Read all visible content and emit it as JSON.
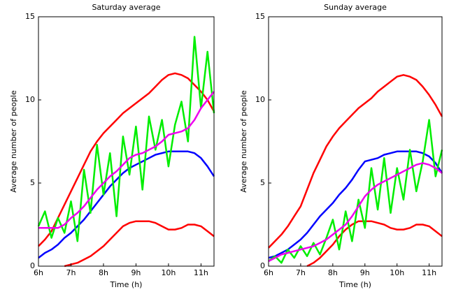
{
  "chart_data": [
    {
      "type": "line",
      "title": "Saturday average",
      "xlabel": "Time (h)",
      "ylabel": "Average number of people",
      "x": [
        6.0,
        6.2,
        6.4,
        6.6,
        6.8,
        7.0,
        7.2,
        7.4,
        7.6,
        7.8,
        8.0,
        8.2,
        8.4,
        8.6,
        8.8,
        9.0,
        9.2,
        9.4,
        9.6,
        9.8,
        10.0,
        10.2,
        10.4,
        10.6,
        10.8,
        11.0,
        11.2,
        11.4
      ],
      "xlim": [
        6,
        11.4
      ],
      "ylim": [
        0,
        15
      ],
      "xticks": [
        {
          "value": 6,
          "label": "6h"
        },
        {
          "value": 7,
          "label": "7h"
        },
        {
          "value": 8,
          "label": "8h"
        },
        {
          "value": 9,
          "label": "9h"
        },
        {
          "value": 10,
          "label": "10h"
        },
        {
          "value": 11,
          "label": "11h"
        }
      ],
      "yticks": [
        0,
        5,
        10,
        15
      ],
      "series": [
        {
          "color": "#ff0000",
          "values": [
            1.2,
            1.6,
            2.1,
            2.9,
            3.7,
            4.5,
            5.3,
            6.1,
            6.9,
            7.5,
            8.0,
            8.4,
            8.8,
            9.2,
            9.5,
            9.8,
            10.1,
            10.4,
            10.8,
            11.2,
            11.5,
            11.6,
            11.5,
            11.3,
            10.9,
            10.5,
            10.0,
            9.3
          ]
        },
        {
          "color": "#ff0000",
          "values": [
            null,
            null,
            null,
            null,
            0.0,
            0.1,
            0.2,
            0.4,
            0.6,
            0.9,
            1.2,
            1.6,
            2.0,
            2.4,
            2.6,
            2.7,
            2.7,
            2.7,
            2.6,
            2.4,
            2.2,
            2.2,
            2.3,
            2.5,
            2.5,
            2.4,
            2.1,
            1.8
          ]
        },
        {
          "color": "#0000ff",
          "values": [
            0.5,
            0.8,
            1.0,
            1.3,
            1.7,
            2.0,
            2.4,
            2.8,
            3.3,
            3.8,
            4.3,
            4.8,
            5.2,
            5.6,
            5.9,
            6.1,
            6.3,
            6.5,
            6.7,
            6.8,
            6.9,
            6.9,
            6.9,
            6.9,
            6.8,
            6.5,
            6.0,
            5.4
          ]
        },
        {
          "color": "#00ee00",
          "values": [
            2.4,
            3.3,
            1.7,
            2.9,
            2.0,
            3.9,
            1.5,
            5.8,
            3.2,
            7.3,
            4.3,
            6.8,
            3.0,
            7.8,
            5.5,
            8.4,
            4.6,
            9.0,
            7.0,
            8.8,
            6.0,
            8.5,
            9.9,
            7.5,
            13.8,
            9.5,
            12.9,
            9.2
          ]
        },
        {
          "color": "#ee00ee",
          "values": [
            2.3,
            2.3,
            2.3,
            2.3,
            2.5,
            2.9,
            3.2,
            3.6,
            4.1,
            4.6,
            5.0,
            5.4,
            5.7,
            6.1,
            6.5,
            6.7,
            6.8,
            7.0,
            7.2,
            7.5,
            7.9,
            8.0,
            8.1,
            8.3,
            8.8,
            9.5,
            10.0,
            10.5
          ]
        }
      ]
    },
    {
      "type": "line",
      "title": "Sunday average",
      "xlabel": "Time (h)",
      "ylabel": "Average number of people",
      "x": [
        6.0,
        6.2,
        6.4,
        6.6,
        6.8,
        7.0,
        7.2,
        7.4,
        7.6,
        7.8,
        8.0,
        8.2,
        8.4,
        8.6,
        8.8,
        9.0,
        9.2,
        9.4,
        9.6,
        9.8,
        10.0,
        10.2,
        10.4,
        10.6,
        10.8,
        11.0,
        11.2,
        11.4
      ],
      "xlim": [
        6,
        11.4
      ],
      "ylim": [
        0,
        15
      ],
      "xticks": [
        {
          "value": 6,
          "label": "6h"
        },
        {
          "value": 7,
          "label": "7h"
        },
        {
          "value": 8,
          "label": "8h"
        },
        {
          "value": 9,
          "label": "9h"
        },
        {
          "value": 10,
          "label": "10h"
        },
        {
          "value": 11,
          "label": "11h"
        }
      ],
      "yticks": [
        0,
        5,
        10,
        15
      ],
      "series": [
        {
          "color": "#ff0000",
          "values": [
            1.1,
            1.5,
            1.9,
            2.4,
            3.0,
            3.6,
            4.6,
            5.6,
            6.4,
            7.2,
            7.8,
            8.3,
            8.7,
            9.1,
            9.5,
            9.8,
            10.1,
            10.5,
            10.8,
            11.1,
            11.4,
            11.5,
            11.4,
            11.2,
            10.8,
            10.3,
            9.7,
            9.0
          ]
        },
        {
          "color": "#ff0000",
          "values": [
            null,
            null,
            null,
            null,
            null,
            null,
            0.0,
            0.2,
            0.5,
            0.9,
            1.3,
            1.8,
            2.2,
            2.5,
            2.7,
            2.7,
            2.7,
            2.6,
            2.5,
            2.3,
            2.2,
            2.2,
            2.3,
            2.5,
            2.5,
            2.4,
            2.1,
            1.8
          ]
        },
        {
          "color": "#0000ff",
          "values": [
            0.5,
            0.6,
            0.8,
            1.0,
            1.3,
            1.6,
            2.0,
            2.5,
            3.0,
            3.4,
            3.8,
            4.3,
            4.7,
            5.2,
            5.8,
            6.3,
            6.4,
            6.5,
            6.7,
            6.8,
            6.9,
            6.9,
            6.9,
            6.9,
            6.8,
            6.6,
            6.2,
            5.6
          ]
        },
        {
          "color": "#00ee00",
          "values": [
            0.3,
            0.6,
            0.2,
            1.0,
            0.5,
            1.2,
            0.6,
            1.4,
            0.7,
            1.7,
            2.8,
            1.0,
            3.3,
            1.5,
            4.0,
            2.3,
            5.9,
            3.4,
            6.5,
            3.2,
            5.9,
            4.0,
            7.0,
            4.5,
            6.3,
            8.8,
            5.4,
            7.0
          ]
        },
        {
          "color": "#ee00ee",
          "values": [
            0.3,
            0.5,
            0.7,
            0.8,
            0.9,
            1.0,
            1.1,
            1.2,
            1.4,
            1.6,
            1.9,
            2.2,
            2.5,
            3.0,
            3.6,
            4.2,
            4.6,
            4.9,
            5.1,
            5.3,
            5.5,
            5.7,
            5.9,
            6.1,
            6.2,
            6.1,
            5.9,
            5.6
          ]
        }
      ]
    }
  ]
}
